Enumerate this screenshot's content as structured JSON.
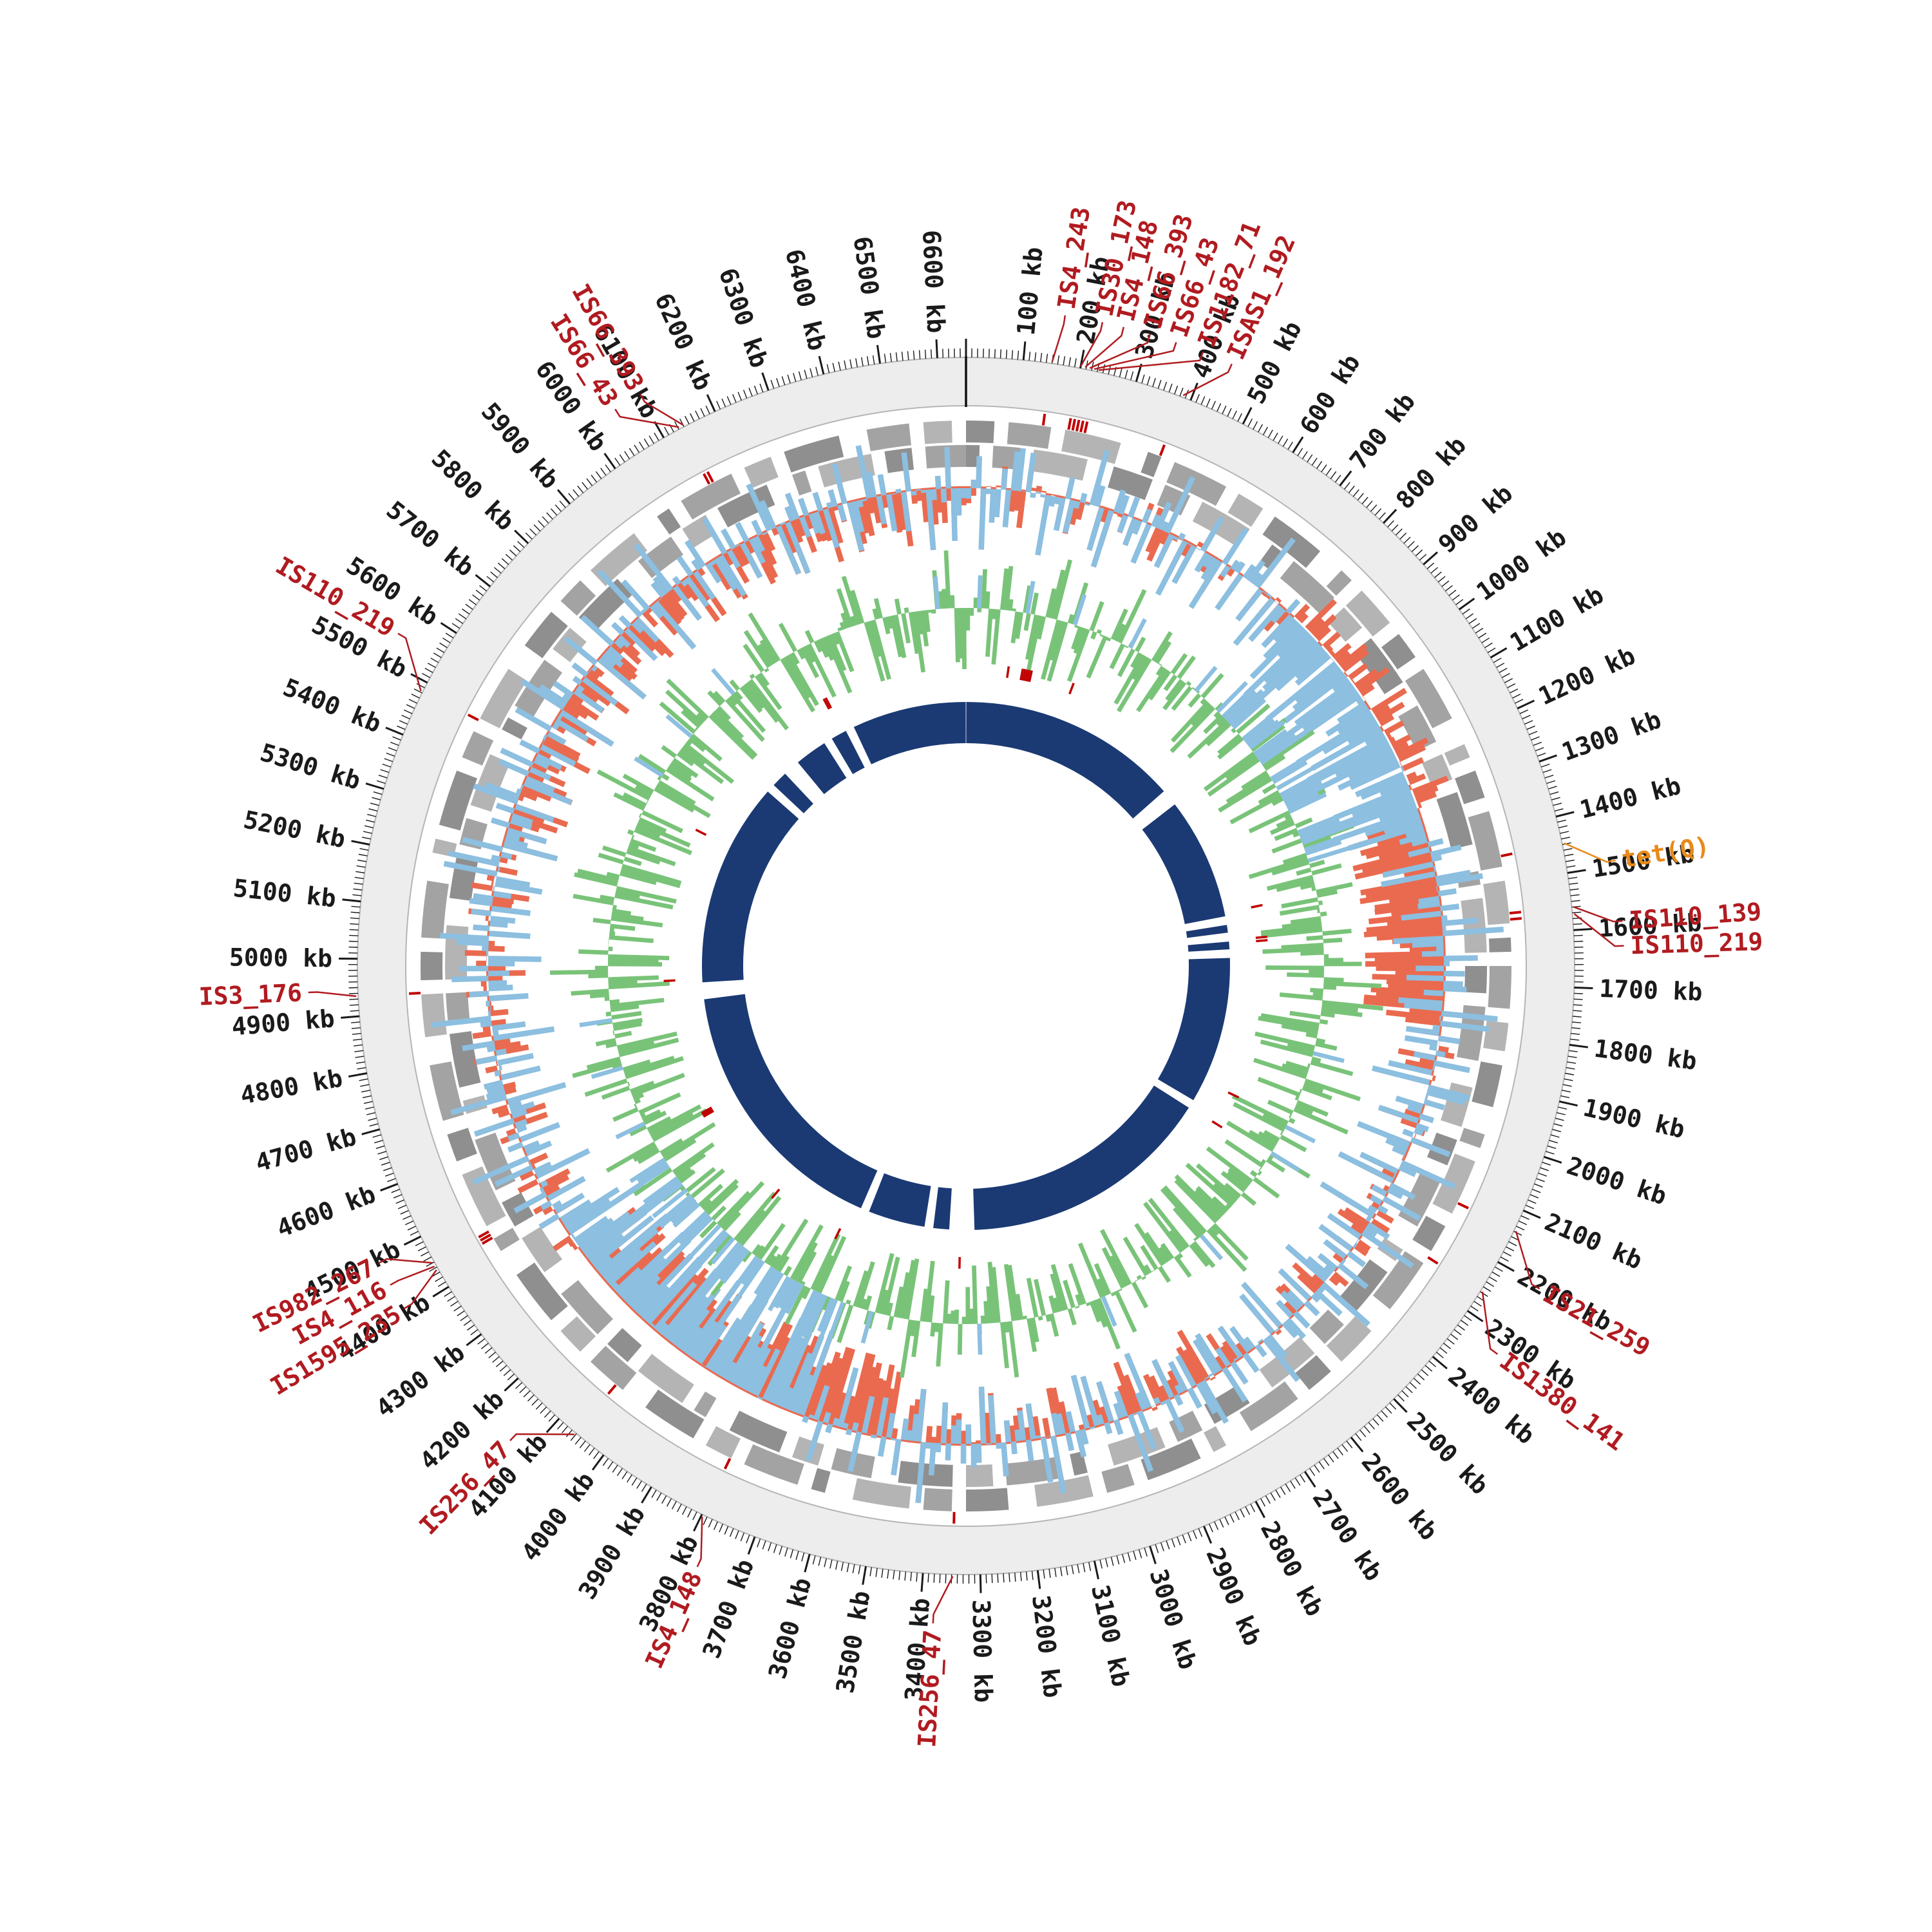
{
  "colors": {
    "ring_fill": "#ededed",
    "ring_border": "#b5b5b5",
    "tick": "#1a1a1a",
    "start_marker": "#111111",
    "gene_grays": [
      "#8f8f8f",
      "#a3a3a3",
      "#b4b4b4"
    ],
    "annotation": "#b01b20",
    "annotation_tick": "#c00000"
  },
  "chart_data": {
    "type": "circular-genome-map",
    "genome": {
      "length_kb": 6650
    },
    "tick": {
      "major_kb": 100,
      "minor_kb": 10,
      "label_suffix": " kb",
      "first_label_kb": 100,
      "last_label_kb": 6600
    },
    "tracks": {
      "genes_outer": {
        "bins": [
          "110111011110010111101101111001",
          "011101101111001011011110111010",
          "111011011100101111011011110011",
          "101101111001011110110111100111",
          "011011110010111101101111001110",
          "110111100101111011011110011101",
          "101111001011110110111100111011",
          "011110010111101101111001110110"
        ]
      },
      "genes_inner": {
        "bins": [
          "101101111001110110111100101111",
          "011011110011101101111001011110",
          "110111100111011011110010111101",
          "101111001110110111100101111011",
          "011110011101101111001011110110",
          "111100111011011110010111101101",
          "111001110110111100101111011011",
          "110011101101111001011110110111"
        ]
      },
      "ring_red": {
        "color": "#ea6a4f",
        "values": [
          "5546455646554656465545564",
          "344343534434435",
          "88979889798897",
          "5465456454655464554656454",
          "56657566575665756657566575",
          "8897988979889798897988979",
          "455464554645546455464554645",
          "5667576675766757667576675766757667576675766"
        ]
      },
      "ring_blue": {
        "color": "#8cbfe0",
        "values": [
          "465346553645535646453565",
          "78968796879867987",
          "5463553645463554635546364",
          "4635546355463554635546355",
          "64535546455364554645",
          "879687968796879687968",
          "5546355463554635546355463",
          "4655364554635546455363554645536455463554646"
        ]
      },
      "ring_green": {
        "color": "#79c379",
        "values": [
          "5372648193746255837465",
          "4857362918473655284736",
          "5948372615948372625847",
          "3647586929384756483726",
          "5746382957463829584736",
          "2938475629384756473829",
          "5647382946573829465738",
          "2947586329475863294758",
          "63294758632947586329"
        ]
      },
      "ring_navy": {
        "color": "#1b3a74",
        "bins": [
          "1111111111",
          "1111111111",
          "1111111001",
          "1111111111",
          "1111010101",
          "1111111111",
          "1111111011",
          "1111111111",
          "1111111111",
          "1111111110",
          "0011011111",
          "1101111111",
          "1111111111",
          "1111111111",
          "1111110011",
          "1111111111",
          "1111111111",
          "1110110011",
          "1101101111",
          "1111111111"
        ]
      }
    },
    "annotations": [
      {
        "label": "IS4_243",
        "kb": 150,
        "label_kb": 160
      },
      {
        "label": "IS30_173",
        "kb": 200,
        "label_kb": 221
      },
      {
        "label": "IS4_148",
        "kb": 208,
        "label_kb": 256
      },
      {
        "label": "IS66_393",
        "kb": 216,
        "label_kb": 300
      },
      {
        "label": "IS66_43",
        "kb": 224,
        "label_kb": 344
      },
      {
        "label": "IS1182_71",
        "kb": 232,
        "label_kb": 390
      },
      {
        "label": "ISAS1_192",
        "kb": 385,
        "label_kb": 440
      },
      {
        "label": "tet(Q)",
        "kb": 1448,
        "label_kb": 1492,
        "color": "#e88a1a"
      },
      {
        "label": "IS110_139",
        "kb": 1560,
        "label_kb": 1590
      },
      {
        "label": "IS110_219",
        "kb": 1572,
        "label_kb": 1630
      },
      {
        "label": "IS21_259",
        "kb": 2138,
        "label_kb": 2205
      },
      {
        "label": "IS1380_141",
        "kb": 2258,
        "label_kb": 2330
      },
      {
        "label": "IS256_47",
        "kb": 3348,
        "label_kb": 3378
      },
      {
        "label": "IS4_148",
        "kb": 3798,
        "label_kb": 3770
      },
      {
        "label": "IS256_47",
        "kb": 4062,
        "label_kb": 4135
      },
      {
        "label": "IS1595_235",
        "kb": 4436,
        "label_kb": 4408
      },
      {
        "label": "IS4_116",
        "kb": 4443,
        "label_kb": 4452
      },
      {
        "label": "IS982_267",
        "kb": 4450,
        "label_kb": 4492
      },
      {
        "label": "IS3_176",
        "kb": 4935,
        "label_kb": 4945
      },
      {
        "label": "IS110_219",
        "kb": 5482,
        "label_kb": 5548
      },
      {
        "label": "IS66_43",
        "kb": 6132,
        "label_kb": 6055
      },
      {
        "label": "IS66_393",
        "kb": 6140,
        "label_kb": 6102
      }
    ]
  }
}
